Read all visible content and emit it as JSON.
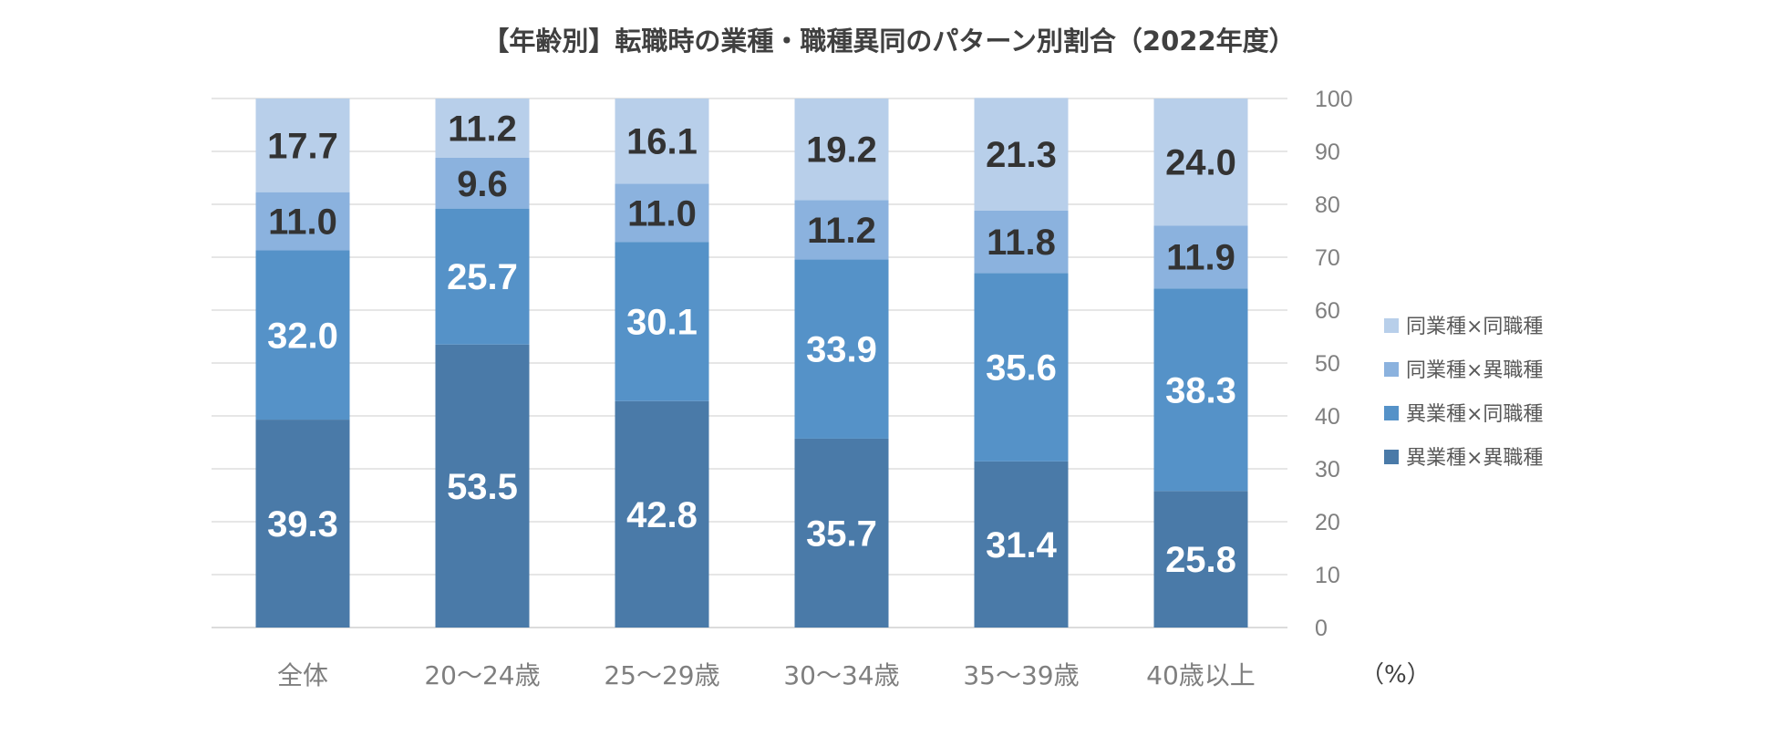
{
  "chart_data": {
    "type": "bar",
    "stacked": true,
    "title": "【年齢別】転職時の業種・職種異同のパターン別割合（2022年度）",
    "categories": [
      "全体",
      "20～24歳",
      "25～29歳",
      "30～34歳",
      "35～39歳",
      "40歳以上"
    ],
    "series": [
      {
        "name": "異業種×異職種",
        "color": "#4a7aa8",
        "label_color": "#ffffff",
        "values": [
          39.3,
          53.5,
          42.8,
          35.7,
          31.4,
          25.8
        ]
      },
      {
        "name": "異業種×同職種",
        "color": "#5592c8",
        "label_color": "#ffffff",
        "values": [
          32.0,
          25.7,
          30.1,
          33.9,
          35.6,
          38.3
        ]
      },
      {
        "name": "同業種×異職種",
        "color": "#8bb2de",
        "label_color": "#333333",
        "values": [
          11.0,
          9.6,
          11.0,
          11.2,
          11.8,
          11.9
        ]
      },
      {
        "name": "同業種×同職種",
        "color": "#b8cfea",
        "label_color": "#333333",
        "values": [
          17.7,
          11.2,
          16.1,
          19.2,
          21.3,
          24.0
        ]
      }
    ],
    "legend_order": [
      "同業種×同職種",
      "同業種×異職種",
      "異業種×同職種",
      "異業種×異職種"
    ],
    "ylim": [
      0,
      100
    ],
    "yticks": [
      0,
      10,
      20,
      30,
      40,
      50,
      60,
      70,
      80,
      90,
      100
    ],
    "y_axis_position": "right",
    "ylabel": "（%）",
    "xlabel": "",
    "grid": true,
    "legend_position": "right"
  }
}
